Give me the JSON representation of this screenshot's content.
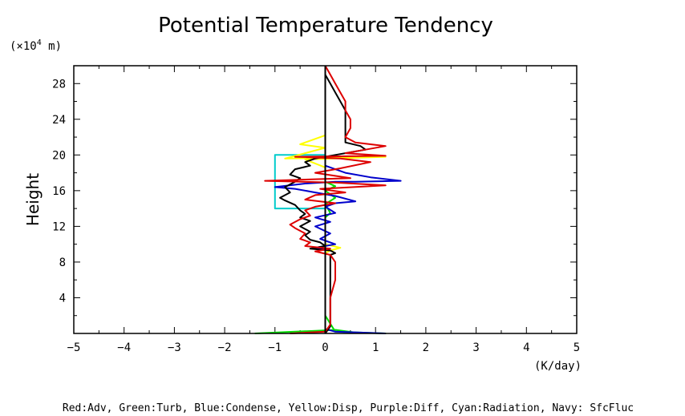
{
  "chart_data": {
    "type": "line",
    "title": "Potential Temperature Tendency",
    "ylabel": "Height",
    "y_unit_prefix": "(×10",
    "y_unit_exp": "4",
    "y_unit_suffix": " m)",
    "xlabel": "(K/day)",
    "caption": "Red:Adv, Green:Turb, Blue:Condense, Yellow:Disp, Purple:Diff, Cyan:Radiation, Navy: SfcFluc",
    "xlim": [
      -5,
      5
    ],
    "ylim": [
      0,
      30
    ],
    "xticks": [
      "−5",
      "−4",
      "−3",
      "−2",
      "−1",
      "0",
      "1",
      "2",
      "3",
      "4",
      "5"
    ],
    "yticks": [
      "4",
      "8",
      "12",
      "16",
      "20",
      "24",
      "28"
    ],
    "series": [
      {
        "color": "#00cccc",
        "points": [
          [
            0,
            14
          ],
          [
            -1,
            14
          ],
          [
            -1,
            20
          ],
          [
            0,
            20
          ]
        ]
      },
      {
        "color": "#ffff00",
        "points": [
          [
            0,
            0
          ],
          [
            0,
            24.5
          ],
          [
            0,
            22.2
          ],
          [
            -0.5,
            21.2
          ],
          [
            0,
            20.8
          ],
          [
            -0.8,
            19.6
          ],
          [
            1.2,
            19.8
          ],
          [
            -0.4,
            19.5
          ],
          [
            0,
            18.6
          ],
          [
            0,
            17
          ],
          [
            0,
            14
          ],
          [
            0,
            10
          ],
          [
            0.3,
            9.6
          ],
          [
            0.1,
            9.3
          ],
          [
            0,
            9
          ]
        ]
      },
      {
        "color": "#00dd00",
        "points": [
          [
            -1.4,
            0
          ],
          [
            -0.2,
            0.3
          ],
          [
            0.2,
            0.4
          ],
          [
            0.6,
            0.1
          ],
          [
            1.2,
            0
          ],
          [
            0.2,
            0.2
          ],
          [
            0,
            2
          ],
          [
            0,
            13
          ],
          [
            0.1,
            13.5
          ],
          [
            0,
            14.5
          ],
          [
            0.2,
            15.2
          ],
          [
            0,
            16
          ],
          [
            0.2,
            16.5
          ],
          [
            0,
            17
          ],
          [
            0,
            30
          ]
        ]
      },
      {
        "color": "#0000cc",
        "points": [
          [
            1.2,
            0
          ],
          [
            0.2,
            0.2
          ],
          [
            0,
            0.5
          ],
          [
            0,
            9.5
          ],
          [
            -0.2,
            9.6
          ],
          [
            0.2,
            10
          ],
          [
            -0.1,
            10.6
          ],
          [
            0.1,
            11.2
          ],
          [
            -0.2,
            12
          ],
          [
            0.1,
            12.5
          ],
          [
            -0.2,
            13
          ],
          [
            0.2,
            13.5
          ],
          [
            0,
            14.2
          ],
          [
            0.2,
            14.6
          ],
          [
            0.6,
            14.8
          ],
          [
            0.2,
            15.4
          ],
          [
            -0.2,
            15.8
          ],
          [
            -0.6,
            16.2
          ],
          [
            -1,
            16.4
          ],
          [
            -0.4,
            16.8
          ],
          [
            0.2,
            17
          ],
          [
            0.6,
            17
          ],
          [
            1.5,
            17.1
          ],
          [
            0.9,
            17.5
          ],
          [
            0.4,
            18
          ],
          [
            0,
            18.8
          ],
          [
            0,
            30
          ]
        ]
      },
      {
        "color": "#000000",
        "points": [
          [
            0,
            0
          ],
          [
            0.1,
            0.8
          ],
          [
            0.1,
            8.8
          ],
          [
            0.2,
            9
          ],
          [
            0.1,
            9.3
          ],
          [
            -0.3,
            9.5
          ],
          [
            0,
            9.8
          ],
          [
            -0.1,
            10.2
          ],
          [
            -0.3,
            10.5
          ],
          [
            -0.4,
            11
          ],
          [
            -0.3,
            11.4
          ],
          [
            -0.5,
            12
          ],
          [
            -0.3,
            12.6
          ],
          [
            -0.5,
            13
          ],
          [
            -0.4,
            13.4
          ],
          [
            -0.5,
            13.8
          ],
          [
            -0.6,
            14.4
          ],
          [
            -0.8,
            14.9
          ],
          [
            -0.9,
            15.2
          ],
          [
            -0.7,
            15.8
          ],
          [
            -0.8,
            16.4
          ],
          [
            -0.6,
            17
          ],
          [
            -0.5,
            17.4
          ],
          [
            -0.7,
            17.8
          ],
          [
            -0.6,
            18.4
          ],
          [
            -0.3,
            18.8
          ],
          [
            -0.4,
            19.2
          ],
          [
            -0.2,
            19.6
          ],
          [
            0.2,
            20
          ],
          [
            0.5,
            20.3
          ],
          [
            0.8,
            20.6
          ],
          [
            0.7,
            21
          ],
          [
            0.4,
            21.4
          ],
          [
            0.4,
            22
          ],
          [
            0.4,
            23
          ],
          [
            0.4,
            24
          ],
          [
            0.4,
            25
          ],
          [
            0.3,
            26
          ],
          [
            0.2,
            27
          ],
          [
            0.1,
            28
          ],
          [
            0,
            29
          ],
          [
            0,
            30
          ]
        ]
      },
      {
        "color": "#dd0000",
        "points": [
          [
            -0.7,
            0
          ],
          [
            0,
            0.2
          ],
          [
            0.1,
            1
          ],
          [
            0.1,
            2
          ],
          [
            0.1,
            4
          ],
          [
            0.2,
            6
          ],
          [
            0.2,
            8
          ],
          [
            0.1,
            8.8
          ],
          [
            -0.2,
            9.2
          ],
          [
            0.1,
            9.5
          ],
          [
            -0.4,
            9.8
          ],
          [
            -0.3,
            10.2
          ],
          [
            -0.5,
            10.6
          ],
          [
            -0.4,
            11.2
          ],
          [
            -0.6,
            11.8
          ],
          [
            -0.7,
            12.2
          ],
          [
            -0.5,
            12.8
          ],
          [
            -0.3,
            13.2
          ],
          [
            -0.4,
            13.8
          ],
          [
            -0.2,
            14.2
          ],
          [
            0.2,
            14.6
          ],
          [
            -0.4,
            15
          ],
          [
            -0.2,
            15.5
          ],
          [
            0.4,
            15.8
          ],
          [
            -0.1,
            16.2
          ],
          [
            1.2,
            16.6
          ],
          [
            0.2,
            16.9
          ],
          [
            -1.2,
            17.1
          ],
          [
            0.5,
            17.4
          ],
          [
            -0.2,
            18
          ],
          [
            0.3,
            18.5
          ],
          [
            0.9,
            19.2
          ],
          [
            0.3,
            19.6
          ],
          [
            -0.6,
            19.8
          ],
          [
            1.2,
            19.9
          ],
          [
            0.4,
            20.2
          ],
          [
            0.8,
            20.6
          ],
          [
            1.2,
            21
          ],
          [
            0.6,
            21.4
          ],
          [
            0.4,
            22
          ],
          [
            0.5,
            23
          ],
          [
            0.5,
            24
          ],
          [
            0.4,
            25
          ],
          [
            0.4,
            26
          ],
          [
            0.3,
            27
          ],
          [
            0.2,
            28
          ],
          [
            0.1,
            29
          ],
          [
            0,
            30
          ]
        ]
      },
      {
        "color": "#000000",
        "points": [
          [
            0,
            0
          ],
          [
            0,
            30
          ]
        ]
      }
    ]
  }
}
